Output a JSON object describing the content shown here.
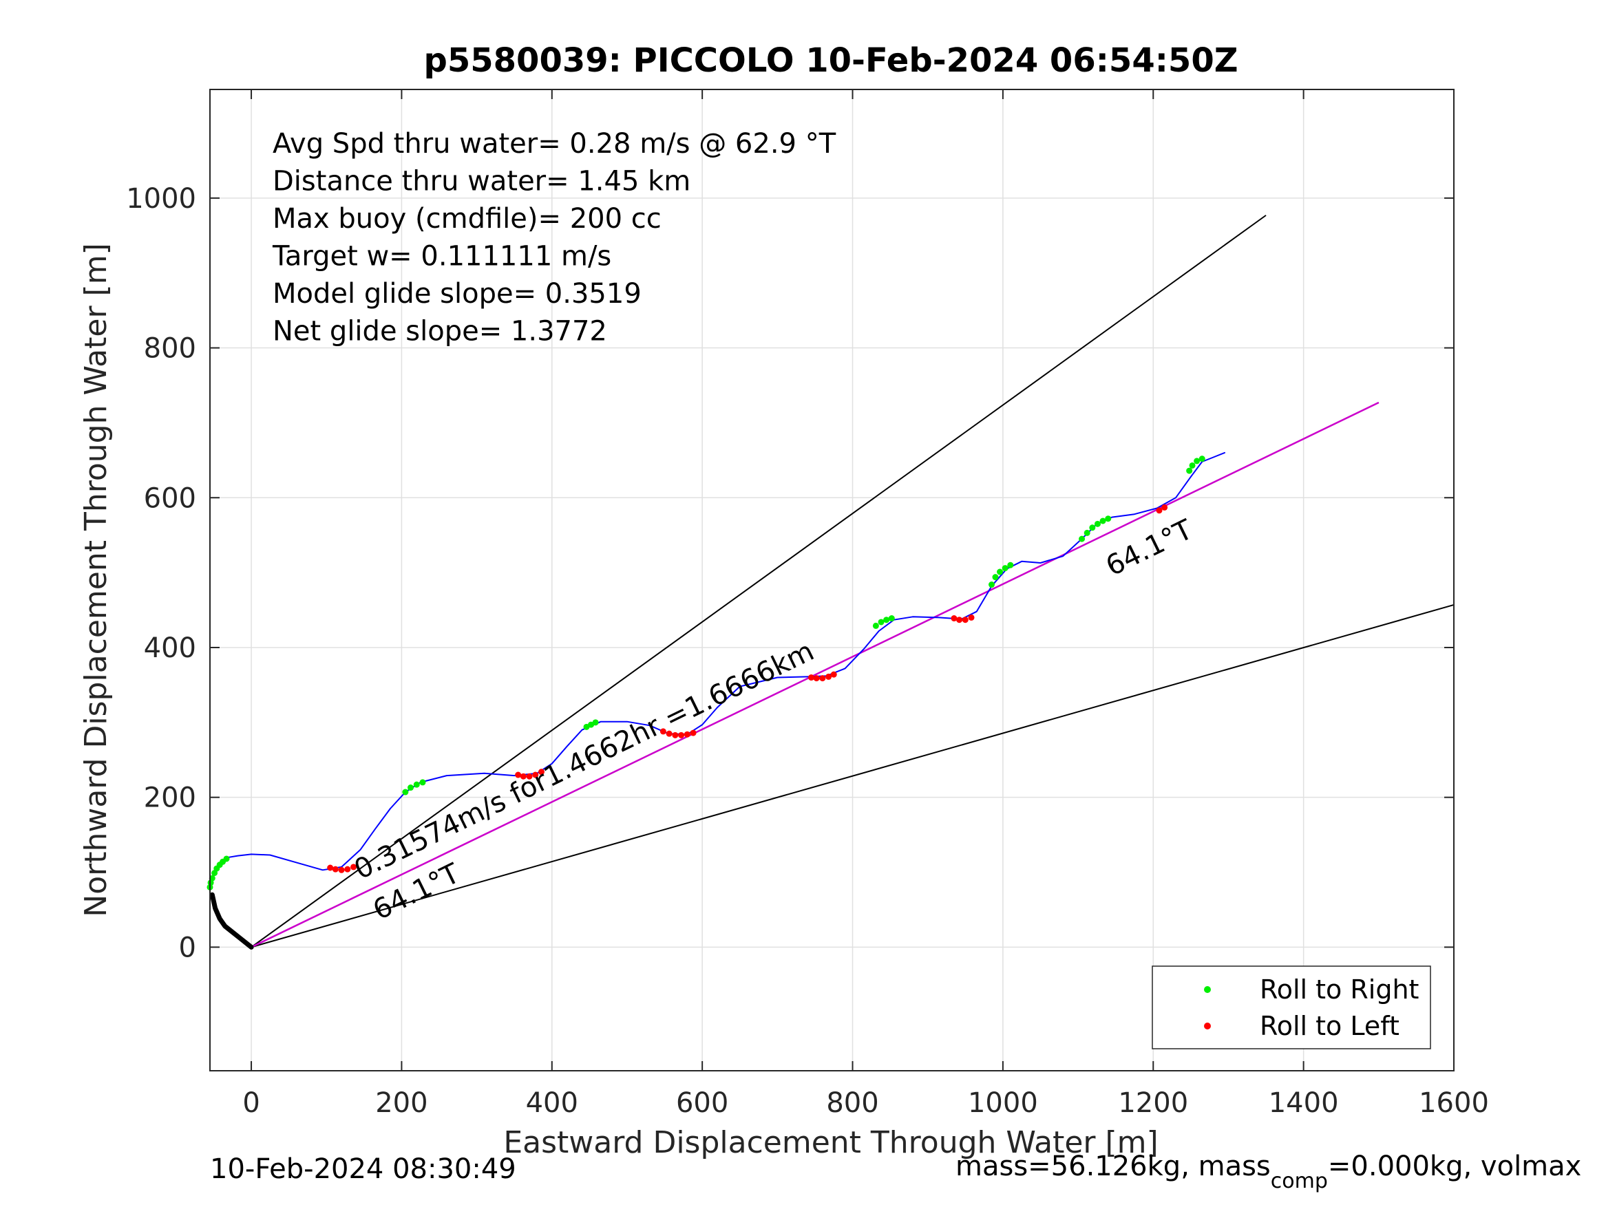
{
  "title": "p5580039: PICCOLO 10-Feb-2024 06:54:50Z",
  "chart_data": {
    "type": "line",
    "xlabel": "Eastward Displacement Through Water [m]",
    "ylabel": "Northward Displacement Through Water [m]",
    "xlim": [
      -55,
      1600
    ],
    "ylim": [
      -165,
      1145
    ],
    "xticks": [
      0,
      200,
      400,
      600,
      800,
      1000,
      1200,
      1400,
      1600
    ],
    "yticks": [
      0,
      200,
      400,
      600,
      800,
      1000
    ],
    "grid": true,
    "legend_position": "bottom-right",
    "legend": [
      {
        "label": "Roll to Right",
        "color": "#00ee00"
      },
      {
        "label": "Roll to Left",
        "color": "#ff0000"
      }
    ],
    "stats_lines": [
      "Avg Spd thru water=  0.28 m/s @  62.9 °T",
      "Distance thru water=  1.45 km",
      "Max buoy (cmdfile)= 200 cc",
      "Target w= 0.111111 m/s",
      "Model glide slope= 0.3519",
      "Net glide slope= 1.3772"
    ],
    "reference_lines": [
      {
        "name": "upper bound",
        "color": "#000000",
        "x": [
          0,
          1350
        ],
        "y": [
          0,
          977
        ]
      },
      {
        "name": "mean heading",
        "color": "#000000",
        "x": [
          0,
          1500
        ],
        "y": [
          0,
          727
        ]
      },
      {
        "name": "lower bound",
        "color": "#000000",
        "x": [
          0,
          1600
        ],
        "y": [
          0,
          457
        ]
      },
      {
        "name": "net track",
        "color": "#cc00cc",
        "x": [
          0,
          1500
        ],
        "y": [
          0,
          727
        ]
      }
    ],
    "track": {
      "color": "#0000ff",
      "x": [
        -55,
        -48,
        -40,
        -30,
        -18,
        0,
        25,
        60,
        95,
        120,
        145,
        165,
        185,
        205,
        225,
        260,
        310,
        350,
        380,
        400,
        420,
        440,
        465,
        500,
        530,
        555,
        580,
        600,
        620,
        650,
        700,
        740,
        765,
        790,
        815,
        835,
        855,
        880,
        915,
        945,
        965,
        985,
        1005,
        1025,
        1050,
        1080,
        1105,
        1125,
        1145,
        1175,
        1205,
        1230,
        1250,
        1265,
        1280,
        1295
      ],
      "y": [
        85,
        100,
        112,
        120,
        122,
        124,
        123,
        113,
        103,
        107,
        130,
        158,
        185,
        207,
        220,
        229,
        232,
        229,
        232,
        245,
        268,
        290,
        301,
        301,
        296,
        285,
        284,
        297,
        320,
        348,
        360,
        361,
        362,
        372,
        398,
        422,
        437,
        441,
        440,
        438,
        448,
        482,
        505,
        515,
        513,
        522,
        545,
        565,
        574,
        578,
        586,
        600,
        628,
        648,
        654,
        660
      ]
    },
    "start_segment": {
      "color": "#000000",
      "x": [
        -52,
        -48,
        -42,
        -35,
        -25,
        -15,
        -5,
        0
      ],
      "y": [
        70,
        52,
        38,
        28,
        20,
        12,
        4,
        0
      ]
    },
    "roll_right": {
      "color": "#00ee00",
      "x": [
        -55,
        -54,
        -52,
        -49,
        -46,
        -42,
        -38,
        -33,
        205,
        212,
        220,
        228,
        446,
        452,
        458,
        831,
        838,
        845,
        852,
        985,
        990,
        996,
        1003,
        1010,
        1105,
        1112,
        1119,
        1126,
        1133,
        1140,
        1248,
        1252,
        1258,
        1265
      ],
      "y": [
        80,
        86,
        92,
        99,
        105,
        110,
        114,
        118,
        207,
        213,
        217,
        220,
        294,
        297,
        300,
        429,
        434,
        437,
        439,
        484,
        494,
        501,
        506,
        510,
        545,
        553,
        560,
        565,
        569,
        572,
        636,
        643,
        649,
        652
      ]
    },
    "roll_left": {
      "color": "#ff0000",
      "x": [
        105,
        112,
        120,
        128,
        136,
        355,
        362,
        370,
        378,
        386,
        548,
        556,
        564,
        572,
        580,
        588,
        745,
        752,
        760,
        768,
        775,
        935,
        942,
        950,
        958,
        1208,
        1215
      ],
      "y": [
        106,
        104,
        103,
        104,
        107,
        230,
        228,
        228,
        230,
        234,
        288,
        285,
        283,
        283,
        284,
        286,
        360,
        359,
        359,
        361,
        364,
        439,
        437,
        437,
        440,
        583,
        587
      ]
    },
    "annotations": [
      {
        "text": "0.31574m/s for1.4662hr =1.6666km",
        "x": 145,
        "y": 90,
        "angle_deg": -26
      },
      {
        "text": "64.1°T",
        "x": 170,
        "y": 36,
        "angle_deg": -26
      },
      {
        "text": "64.1°T",
        "x": 1145,
        "y": 495,
        "angle_deg": -26
      }
    ]
  },
  "footer": {
    "timestamp": "10-Feb-2024 08:30:49",
    "mass_left": "mass=56.126kg, mass",
    "mass_sub": "comp",
    "mass_right": "=0.000kg, volmax"
  }
}
